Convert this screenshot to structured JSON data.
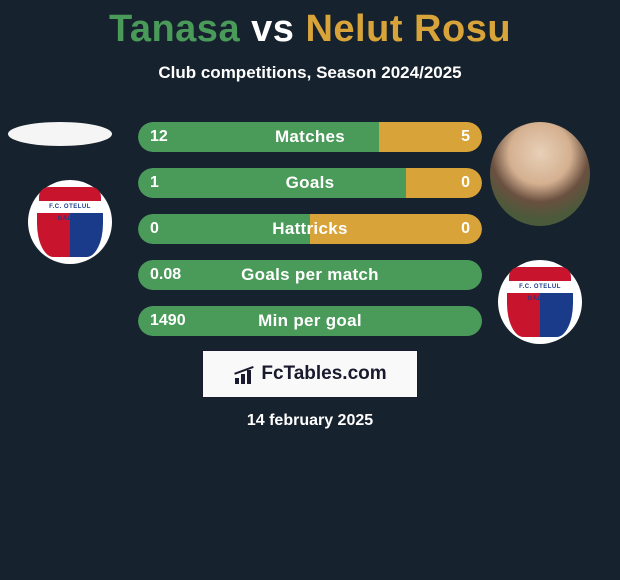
{
  "background_color": "#16222d",
  "title": {
    "player1": "Tanasa",
    "vs": "vs",
    "player2": "Nelut Rosu",
    "player1_color": "#4a9a5a",
    "player2_color": "#d8a43a",
    "vs_color": "#ffffff"
  },
  "subtitle": "Club competitions, Season 2024/2025",
  "bar_colors": {
    "left": "#4a9a5a",
    "right": "#d8a43a"
  },
  "stats": [
    {
      "label": "Matches",
      "left_val": "12",
      "right_val": "5",
      "left_pct": 70
    },
    {
      "label": "Goals",
      "left_val": "1",
      "right_val": "0",
      "left_pct": 78
    },
    {
      "label": "Hattricks",
      "left_val": "0",
      "right_val": "0",
      "left_pct": 50
    },
    {
      "label": "Goals per match",
      "left_val": "0.08",
      "right_val": "",
      "left_pct": 100
    },
    {
      "label": "Min per goal",
      "left_val": "1490",
      "right_val": "",
      "left_pct": 100
    }
  ],
  "club_badge": {
    "top_color": "#c8142d",
    "left_color": "#c8142d",
    "right_color": "#1a3a8a",
    "band_text": "F.C. OTELUL GALATI"
  },
  "brand": {
    "text": "FcTables.com"
  },
  "date": "14 february 2025"
}
